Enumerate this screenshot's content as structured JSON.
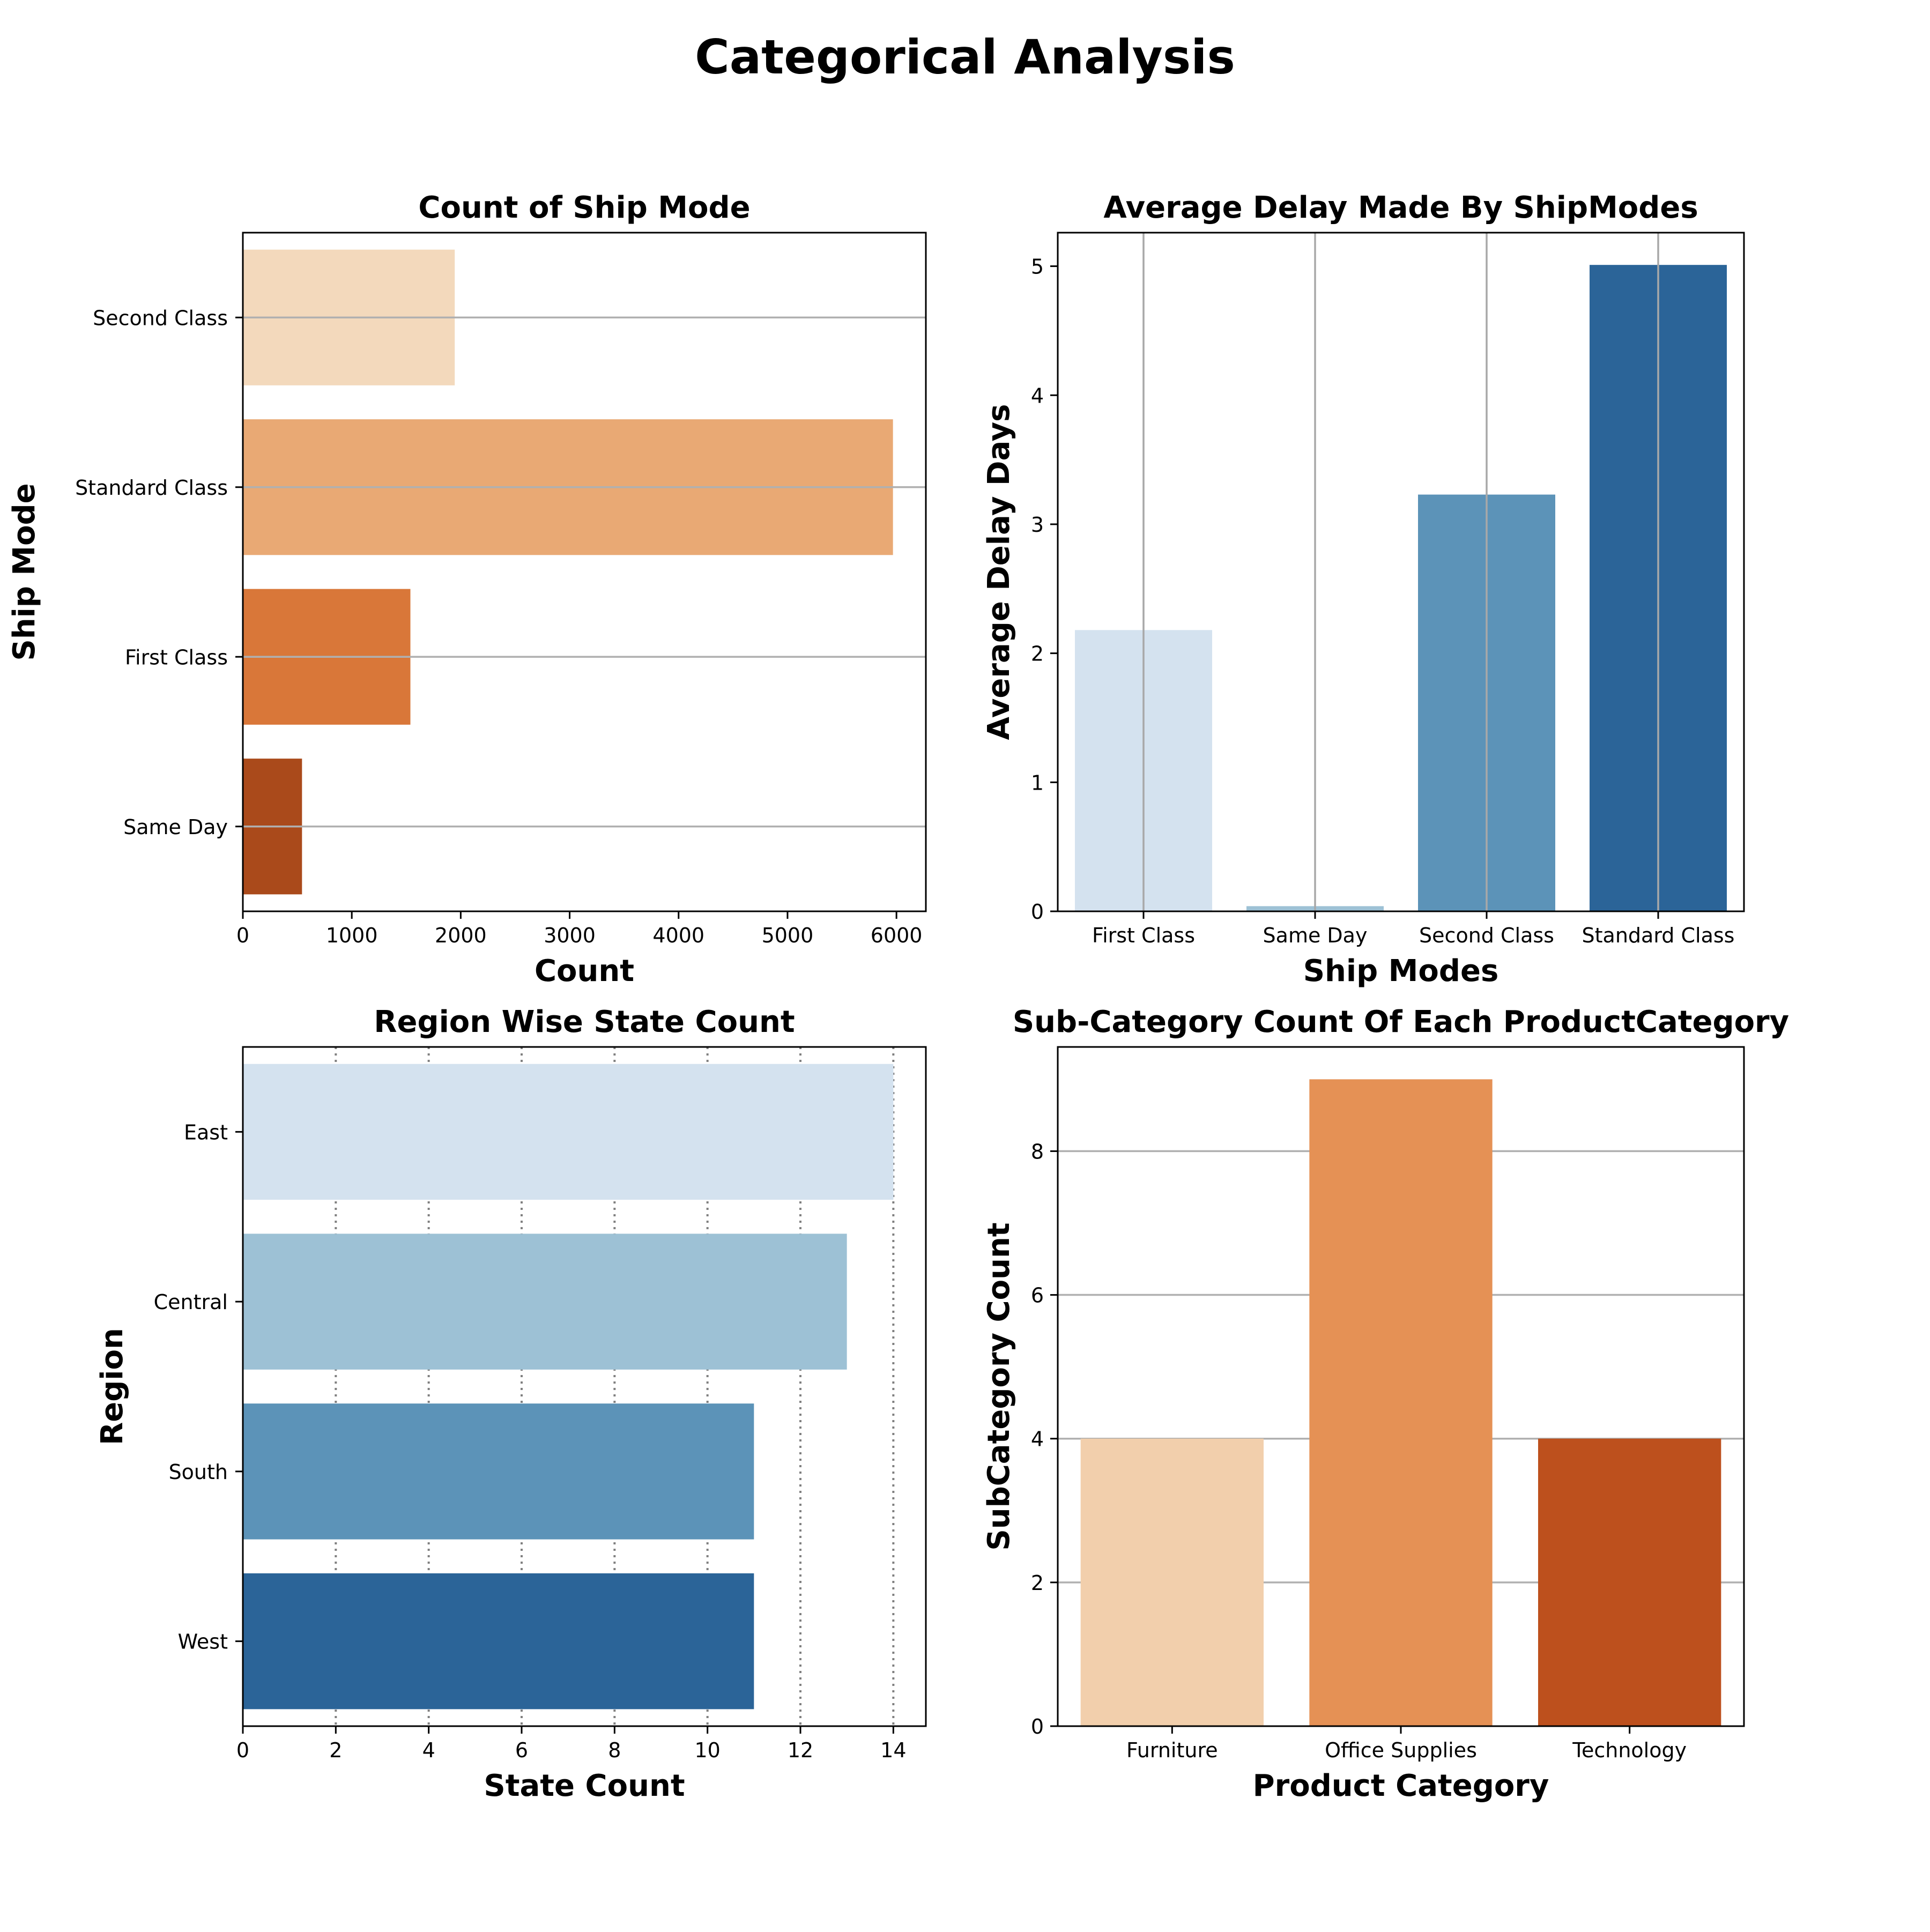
{
  "figure": {
    "title": "Categorical Analysis"
  },
  "chart_data": [
    {
      "type": "bar",
      "orientation": "horizontal",
      "title": "Count of Ship Mode",
      "xlabel": "Count",
      "ylabel": "Ship Mode",
      "categories": [
        "Second Class",
        "Standard Class",
        "First Class",
        "Same Day"
      ],
      "values": [
        1945,
        5968,
        1538,
        543
      ],
      "colors": [
        "#f3d9bc",
        "#e9a974",
        "#d97739",
        "#aa4a1b"
      ],
      "xlim": [
        0,
        6270
      ],
      "xticks": [
        0,
        1000,
        2000,
        3000,
        4000,
        5000,
        6000
      ],
      "grid": "category gridlines (solid)"
    },
    {
      "type": "bar",
      "orientation": "vertical",
      "title": "Average Delay Made By ShipModes",
      "xlabel": "Ship Modes",
      "ylabel": "Average Delay Days",
      "categories": [
        "First Class",
        "Same Day",
        "Second Class",
        "Standard Class"
      ],
      "values": [
        2.18,
        0.04,
        3.23,
        5.01
      ],
      "colors": [
        "#d4e2ef",
        "#9dc1d5",
        "#5c93b8",
        "#2b6498"
      ],
      "ylim": [
        0,
        5.26
      ],
      "yticks": [
        0,
        1,
        2,
        3,
        4,
        5
      ],
      "grid": "category gridlines (solid)"
    },
    {
      "type": "bar",
      "orientation": "horizontal",
      "title": "Region Wise State Count",
      "xlabel": "State Count",
      "ylabel": "Region",
      "categories": [
        "East",
        "Central",
        "South",
        "West"
      ],
      "values": [
        14,
        13,
        11,
        11
      ],
      "colors": [
        "#d4e2ef",
        "#9dc1d5",
        "#5c93b8",
        "#2b6498"
      ],
      "xlim": [
        0,
        14.7
      ],
      "xticks": [
        0,
        2,
        4,
        6,
        8,
        10,
        12,
        14
      ],
      "grid": "x gridlines (dotted)"
    },
    {
      "type": "bar",
      "orientation": "vertical",
      "title": "Sub-Category Count Of Each ProductCategory",
      "xlabel": "Product Category",
      "ylabel": "SubCategory Count",
      "categories": [
        "Furniture",
        "Office Supplies",
        "Technology"
      ],
      "values": [
        4,
        9,
        4
      ],
      "colors": [
        "#f2cfac",
        "#e59155",
        "#bd501d"
      ],
      "ylim": [
        0,
        9.45
      ],
      "yticks": [
        0,
        2,
        4,
        6,
        8
      ],
      "grid": "y gridlines (solid)"
    }
  ]
}
